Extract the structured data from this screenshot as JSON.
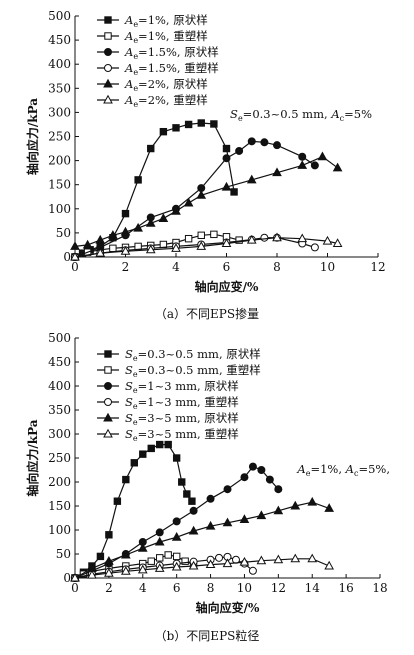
{
  "figure": {
    "caption_a": "（a）不同EPS掺量",
    "caption_b": "（b）不同EPS粒径"
  },
  "chart_data": [
    {
      "type": "line",
      "ylabel": "轴向应力/kPa",
      "xlabel": "轴向应变/%",
      "xlim": [
        0,
        12
      ],
      "ylim": [
        0,
        500
      ],
      "xticks": [
        0,
        2,
        4,
        6,
        8,
        10,
        12
      ],
      "yticks": [
        0,
        50,
        100,
        150,
        200,
        250,
        300,
        350,
        400,
        450,
        500
      ],
      "legend_position": "top-left",
      "annotation": "Se=0.3~0.5 mm, Ac=5%",
      "series": [
        {
          "name": "Ae=1%, 原状样",
          "marker": "filled-square",
          "x": [
            0,
            0.3,
            0.6,
            1.0,
            1.5,
            2.0,
            2.5,
            3.0,
            3.5,
            4.0,
            4.5,
            5.0,
            5.5,
            6.0,
            6.3
          ],
          "y": [
            0,
            8,
            15,
            22,
            40,
            90,
            160,
            225,
            260,
            268,
            275,
            278,
            276,
            225,
            135
          ]
        },
        {
          "name": "Ae=1%, 重塑样",
          "marker": "open-square",
          "x": [
            0,
            0.5,
            1.0,
            1.5,
            2.0,
            2.5,
            3.0,
            3.5,
            4.0,
            4.5,
            5.0,
            5.5,
            6.0,
            6.5
          ],
          "y": [
            0,
            10,
            15,
            18,
            20,
            22,
            24,
            26,
            30,
            38,
            45,
            47,
            42,
            35
          ]
        },
        {
          "name": "Ae=1.5%, 原状样",
          "marker": "filled-circle",
          "x": [
            0,
            1.0,
            2.0,
            3.0,
            4.0,
            5.0,
            6.0,
            6.5,
            7.0,
            7.5,
            8.0,
            9.0,
            9.5
          ],
          "y": [
            0,
            20,
            45,
            82,
            100,
            143,
            205,
            220,
            240,
            238,
            232,
            208,
            190
          ]
        },
        {
          "name": "Ae=1.5%, 重塑样",
          "marker": "open-circle",
          "x": [
            0,
            1.0,
            2.0,
            3.0,
            4.0,
            5.0,
            6.0,
            7.0,
            7.5,
            8.0,
            9.0,
            9.5
          ],
          "y": [
            0,
            8,
            14,
            18,
            22,
            26,
            30,
            36,
            40,
            40,
            28,
            20
          ]
        },
        {
          "name": "Ae=2%, 原状样",
          "marker": "filled-triangle",
          "x": [
            0,
            0.5,
            1.0,
            1.5,
            2.0,
            2.5,
            3.0,
            3.5,
            4.0,
            4.5,
            5.0,
            6.0,
            7.0,
            8.0,
            9.0,
            9.8,
            10.4
          ],
          "y": [
            22,
            25,
            35,
            45,
            52,
            60,
            70,
            80,
            95,
            112,
            128,
            145,
            160,
            175,
            190,
            208,
            185
          ]
        },
        {
          "name": "Ae=2%, 重塑样",
          "marker": "open-triangle",
          "x": [
            0,
            1.0,
            2.0,
            3.0,
            4.0,
            5.0,
            6.0,
            7.0,
            8.0,
            9.0,
            10.0,
            10.4
          ],
          "y": [
            0,
            8,
            12,
            15,
            18,
            22,
            28,
            35,
            40,
            38,
            33,
            28
          ]
        }
      ]
    },
    {
      "type": "line",
      "ylabel": "轴向应力/kPa",
      "xlabel": "轴向应变/%",
      "xlim": [
        0,
        18
      ],
      "ylim": [
        0,
        500
      ],
      "xticks": [
        0,
        2,
        4,
        6,
        8,
        10,
        12,
        14,
        16,
        18
      ],
      "yticks": [
        0,
        50,
        100,
        150,
        200,
        250,
        300,
        350,
        400,
        450,
        500
      ],
      "legend_position": "top-left",
      "annotation": "Ae=1%, Ac=5%,",
      "series": [
        {
          "name": "Se=0.3~0.5 mm, 原状样",
          "marker": "filled-square",
          "x": [
            0,
            0.5,
            1.0,
            1.5,
            2.0,
            2.5,
            3.0,
            3.5,
            4.0,
            4.5,
            5.0,
            5.5,
            6.0,
            6.3,
            6.6,
            6.9
          ],
          "y": [
            0,
            12,
            25,
            45,
            90,
            160,
            205,
            240,
            258,
            270,
            278,
            278,
            250,
            200,
            175,
            160
          ]
        },
        {
          "name": "Se=0.3~0.5 mm, 重塑样",
          "marker": "open-square",
          "x": [
            0,
            0.5,
            1.0,
            2.0,
            3.0,
            4.0,
            4.5,
            5.0,
            5.5,
            6.0,
            6.5,
            7.0
          ],
          "y": [
            0,
            8,
            14,
            20,
            25,
            30,
            35,
            42,
            48,
            45,
            35,
            28
          ]
        },
        {
          "name": "Se=1~3 mm, 原状样",
          "marker": "filled-circle",
          "x": [
            0,
            1.0,
            2.0,
            3.0,
            4.0,
            5.0,
            6.0,
            7.0,
            8.0,
            9.0,
            10.0,
            10.5,
            11.0,
            11.5,
            12.0
          ],
          "y": [
            0,
            15,
            30,
            50,
            75,
            95,
            118,
            140,
            165,
            185,
            210,
            232,
            225,
            205,
            185
          ]
        },
        {
          "name": "Se=1~3 mm, 重塑样",
          "marker": "open-circle",
          "x": [
            0,
            1.0,
            2.0,
            3.0,
            4.0,
            5.0,
            6.0,
            7.0,
            8.0,
            8.5,
            9.0,
            9.5,
            10.0,
            10.5
          ],
          "y": [
            0,
            8,
            13,
            18,
            22,
            26,
            30,
            34,
            38,
            42,
            44,
            38,
            30,
            15
          ]
        },
        {
          "name": "Se=3~5 mm, 原状样",
          "marker": "filled-triangle",
          "x": [
            0,
            1.0,
            2.0,
            3.0,
            4.0,
            5.0,
            6.0,
            7.0,
            8.0,
            9.0,
            10.0,
            11.0,
            12.0,
            13.0,
            14.0,
            15.0
          ],
          "y": [
            0,
            20,
            35,
            48,
            62,
            75,
            85,
            98,
            108,
            115,
            122,
            130,
            140,
            150,
            158,
            145
          ]
        },
        {
          "name": "Se=3~5 mm, 重塑样",
          "marker": "open-triangle",
          "x": [
            0,
            1.0,
            2.0,
            3.0,
            4.0,
            5.0,
            6.0,
            7.0,
            8.0,
            9.0,
            10.0,
            11.0,
            12.0,
            13.0,
            14.0,
            15.0
          ],
          "y": [
            0,
            6,
            10,
            14,
            17,
            20,
            23,
            25,
            28,
            30,
            33,
            36,
            38,
            40,
            40,
            25
          ]
        }
      ]
    }
  ]
}
